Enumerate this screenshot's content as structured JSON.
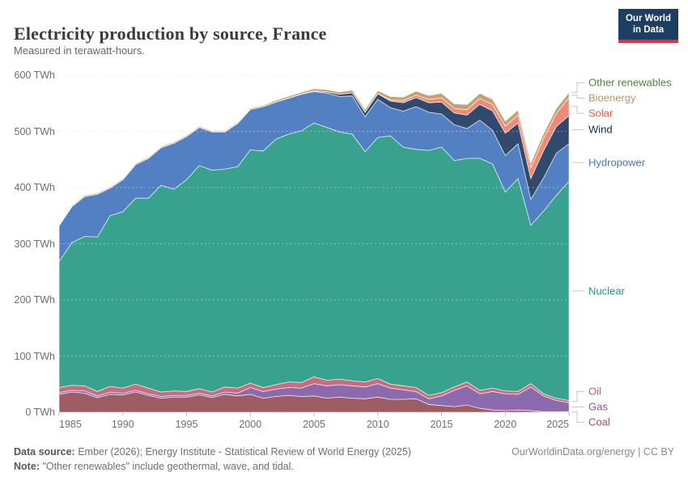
{
  "header": {
    "title": "Electricity production by source, France",
    "subtitle": "Measured in terawatt-hours.",
    "logo": {
      "line1": "Our World",
      "line2": "in Data"
    }
  },
  "colors": {
    "logo_background": "#1d3d63",
    "logo_accent": "#e0313f",
    "gridline": "#e4e4e4",
    "axis_text": "#6e6e6e",
    "connector": "#c4c4c4"
  },
  "chart_data": {
    "type": "area",
    "stacked": true,
    "title": "Electricity production by source, France",
    "unit": "TWh",
    "xlabel": "",
    "ylabel": "",
    "ylim": [
      0,
      600
    ],
    "grid": "dashed-horizontal",
    "legend_position": "right-of-plot",
    "x": [
      1985,
      1986,
      1987,
      1988,
      1989,
      1990,
      1991,
      1992,
      1993,
      1994,
      1995,
      1996,
      1997,
      1998,
      1999,
      2000,
      2001,
      2002,
      2003,
      2004,
      2005,
      2006,
      2007,
      2008,
      2009,
      2010,
      2011,
      2012,
      2013,
      2014,
      2015,
      2016,
      2017,
      2018,
      2019,
      2020,
      2021,
      2022,
      2023,
      2024,
      2025
    ],
    "x_ticks": [
      {
        "value": 1985,
        "label": "1985"
      },
      {
        "value": 1990,
        "label": "1990"
      },
      {
        "value": 1995,
        "label": "1995"
      },
      {
        "value": 2000,
        "label": "2000"
      },
      {
        "value": 2005,
        "label": "2005"
      },
      {
        "value": 2010,
        "label": "2010"
      },
      {
        "value": 2015,
        "label": "2015"
      },
      {
        "value": 2020,
        "label": "2020"
      },
      {
        "value": 2025,
        "label": "2025"
      }
    ],
    "y_ticks": [
      {
        "value": 0,
        "label": "0 TWh"
      },
      {
        "value": 100,
        "label": "100 TWh"
      },
      {
        "value": 200,
        "label": "200 TWh"
      },
      {
        "value": 300,
        "label": "300 TWh"
      },
      {
        "value": 400,
        "label": "400 TWh"
      },
      {
        "value": 500,
        "label": "500 TWh"
      },
      {
        "value": 600,
        "label": "600 TWh"
      }
    ],
    "series": [
      {
        "name": "Coal",
        "color": "#9e5c63",
        "label_color": "#a04f5c",
        "values": [
          32,
          36,
          34,
          26,
          32,
          31,
          36,
          30,
          25,
          27,
          27,
          31,
          26,
          32,
          29,
          32,
          25,
          28,
          30,
          28,
          29,
          25,
          27,
          25,
          24,
          27,
          23,
          23,
          24,
          14,
          12,
          10,
          13,
          7,
          4,
          3,
          4,
          3,
          1,
          1,
          1
        ]
      },
      {
        "name": "Gas",
        "color": "#8b6bae",
        "label_color": "#8852a5",
        "values": [
          3,
          3,
          4,
          3,
          4,
          3,
          3,
          3,
          3,
          3,
          3,
          3,
          3,
          4,
          5,
          12,
          12,
          13,
          14,
          15,
          22,
          22,
          22,
          22,
          21,
          24,
          20,
          17,
          13,
          10,
          17,
          29,
          34,
          26,
          33,
          30,
          28,
          42,
          28,
          20,
          16
        ]
      },
      {
        "name": "Oil",
        "color": "#ca6b80",
        "label_color": "#c25b71",
        "values": [
          9,
          9,
          9,
          8,
          10,
          9,
          11,
          10,
          8,
          8,
          7,
          8,
          7,
          9,
          9,
          8,
          7,
          8,
          10,
          10,
          12,
          10,
          10,
          9,
          9,
          9,
          7,
          7,
          7,
          6,
          6,
          6,
          7,
          6,
          6,
          5,
          5,
          6,
          4,
          4,
          4
        ]
      },
      {
        "name": "Nuclear",
        "color": "#38a28e",
        "label_color": "#2c9181",
        "values": [
          224,
          254,
          266,
          275,
          304,
          314,
          331,
          338,
          368,
          359,
          377,
          397,
          395,
          388,
          394,
          415,
          421,
          437,
          441,
          448,
          452,
          450,
          440,
          439,
          410,
          429,
          442,
          425,
          424,
          436,
          437,
          403,
          398,
          413,
          399,
          354,
          379,
          282,
          325,
          361,
          390
        ]
      },
      {
        "name": "Hydropower",
        "color": "#5280c2",
        "label_color": "#4674bc",
        "values": [
          64,
          64,
          71,
          76,
          49,
          57,
          60,
          71,
          67,
          82,
          77,
          68,
          68,
          66,
          77,
          72,
          79,
          66,
          64,
          65,
          56,
          61,
          63,
          68,
          62,
          68,
          50,
          64,
          76,
          68,
          59,
          64,
          53,
          68,
          60,
          65,
          62,
          46,
          59,
          75,
          67
        ]
      },
      {
        "name": "Wind",
        "color": "#32496e",
        "label_color": "#112a51",
        "values": [
          0,
          0,
          0,
          0,
          0,
          0,
          0,
          0,
          0,
          0,
          0,
          0,
          0,
          0,
          0,
          0,
          0.1,
          0.3,
          0.4,
          0.6,
          1,
          2.2,
          4,
          5.7,
          7.9,
          9.9,
          12,
          14.9,
          16,
          17,
          21.1,
          20.7,
          24,
          28.1,
          34.5,
          39.7,
          36.8,
          37,
          48.6,
          47.5,
          50
        ]
      },
      {
        "name": "Solar",
        "color": "#ee8b76",
        "label_color": "#e25c4b",
        "values": [
          0,
          0,
          0,
          0,
          0,
          0,
          0,
          0,
          0,
          0,
          0,
          0,
          0,
          0,
          0,
          0,
          0,
          0,
          0,
          0,
          0,
          0,
          0,
          0,
          0.2,
          0.6,
          2,
          4,
          4.6,
          5.9,
          7.7,
          8.3,
          9.6,
          10.6,
          11.6,
          12.6,
          14.3,
          19,
          21.5,
          23.4,
          32
        ]
      },
      {
        "name": "Bioenergy",
        "color": "#c2a173",
        "label_color": "#be9763",
        "values": [
          2,
          2,
          2,
          2,
          2,
          2,
          2,
          2,
          2,
          2,
          2,
          2,
          2,
          2,
          2,
          2,
          2,
          3,
          3,
          3,
          4,
          4,
          4,
          5,
          5,
          5,
          6,
          6,
          7,
          7,
          8,
          8,
          9,
          9,
          9,
          9,
          9,
          9,
          9,
          9,
          9
        ]
      },
      {
        "name": "Other renewables",
        "color": "#6e9561",
        "label_color": "#568043",
        "values": [
          0.4,
          0.4,
          0.4,
          0.4,
          0.4,
          0.4,
          0.4,
          0.4,
          0.4,
          0.4,
          0.4,
          0.4,
          0.4,
          0.4,
          0.4,
          0.4,
          0.4,
          0.4,
          0.4,
          0.4,
          0.4,
          0.4,
          0.4,
          0.4,
          0.4,
          0.4,
          0.5,
          0.5,
          0.5,
          0.5,
          0.5,
          0.5,
          0.5,
          0.5,
          0.5,
          0.5,
          0.5,
          0.6,
          0.6,
          0.7,
          0.7
        ]
      }
    ]
  },
  "footer": {
    "source_label": "Data source:",
    "source_text": " Ember (2026); Energy Institute - Statistical Review of World Energy (2025)",
    "note_label": "Note:",
    "note_text": " \"Other renewables\" include geothermal, wave, and tidal.",
    "attribution": "OurWorldinData.org/energy | CC BY"
  }
}
